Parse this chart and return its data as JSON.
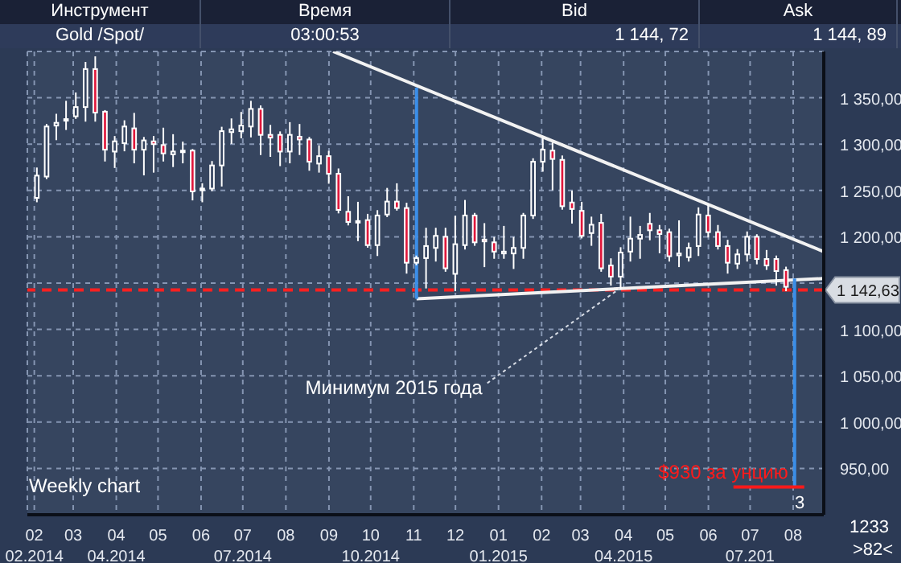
{
  "chart_data": [
    {
      "type": "other",
      "annotations": [
        "Инструмент",
        "Время",
        "Bid",
        "Ask",
        "Gold /Spot/",
        "03:00:53",
        "1 144, 72",
        "1 144, 89"
      ]
    },
    {
      "type": "candlestick",
      "x": [
        "2014-02-03",
        "2014-02-10",
        "2014-02-17",
        "2014-02-24",
        "2014-03-03",
        "2014-03-10",
        "2014-03-17",
        "2014-03-24",
        "2014-03-31",
        "2014-04-07",
        "2014-04-14",
        "2014-04-21",
        "2014-04-28",
        "2014-05-05",
        "2014-05-12",
        "2014-05-19",
        "2014-05-26",
        "2014-06-02",
        "2014-06-09",
        "2014-06-16",
        "2014-06-23",
        "2014-06-30",
        "2014-07-07",
        "2014-07-14",
        "2014-07-21",
        "2014-07-28",
        "2014-08-04",
        "2014-08-11",
        "2014-08-18",
        "2014-08-25",
        "2014-09-01",
        "2014-09-08",
        "2014-09-15",
        "2014-09-22",
        "2014-09-29",
        "2014-10-06",
        "2014-10-13",
        "2014-10-20",
        "2014-10-27",
        "2014-11-03",
        "2014-11-10",
        "2014-11-17",
        "2014-11-24",
        "2014-12-01",
        "2014-12-08",
        "2014-12-15",
        "2014-12-22",
        "2014-12-29",
        "2015-01-05",
        "2015-01-12",
        "2015-01-19",
        "2015-01-26",
        "2015-02-02",
        "2015-02-09",
        "2015-02-16",
        "2015-02-23",
        "2015-03-02",
        "2015-03-09",
        "2015-03-16",
        "2015-03-23",
        "2015-03-30",
        "2015-04-06",
        "2015-04-13",
        "2015-04-20",
        "2015-04-27",
        "2015-05-04",
        "2015-05-11",
        "2015-05-18",
        "2015-05-25",
        "2015-06-01",
        "2015-06-08",
        "2015-06-15",
        "2015-06-22",
        "2015-06-29",
        "2015-07-06",
        "2015-07-13",
        "2015-07-20",
        "2015-07-27"
      ],
      "ohlc": [
        [
          1242,
          1273,
          1239,
          1266
        ],
        [
          1265,
          1320,
          1264,
          1319
        ],
        [
          1320,
          1331,
          1306,
          1323
        ],
        [
          1326,
          1345,
          1317,
          1327
        ],
        [
          1330,
          1354,
          1329,
          1340
        ],
        [
          1340,
          1387,
          1326,
          1381
        ],
        [
          1381,
          1393,
          1326,
          1334
        ],
        [
          1335,
          1335,
          1283,
          1294
        ],
        [
          1292,
          1307,
          1276,
          1303
        ],
        [
          1301,
          1324,
          1294,
          1319
        ],
        [
          1317,
          1332,
          1281,
          1294
        ],
        [
          1294,
          1306,
          1268,
          1304
        ],
        [
          1303,
          1307,
          1271,
          1300
        ],
        [
          1299,
          1316,
          1283,
          1290
        ],
        [
          1289,
          1309,
          1277,
          1292
        ],
        [
          1293,
          1301,
          1281,
          1293
        ],
        [
          1293,
          1293,
          1241,
          1249
        ],
        [
          1251,
          1256,
          1239,
          1252
        ],
        [
          1252,
          1280,
          1251,
          1277
        ],
        [
          1277,
          1317,
          1256,
          1314
        ],
        [
          1313,
          1326,
          1302,
          1316
        ],
        [
          1314,
          1333,
          1308,
          1320
        ],
        [
          1319,
          1345,
          1309,
          1338
        ],
        [
          1338,
          1340,
          1290,
          1310
        ],
        [
          1310,
          1319,
          1288,
          1307
        ],
        [
          1310,
          1312,
          1278,
          1292
        ],
        [
          1292,
          1322,
          1281,
          1310
        ],
        [
          1308,
          1320,
          1290,
          1305
        ],
        [
          1305,
          1306,
          1273,
          1281
        ],
        [
          1279,
          1297,
          1271,
          1287
        ],
        [
          1287,
          1291,
          1259,
          1268
        ],
        [
          1268,
          1272,
          1227,
          1229
        ],
        [
          1227,
          1242,
          1214,
          1216
        ],
        [
          1216,
          1236,
          1197,
          1217
        ],
        [
          1218,
          1223,
          1190,
          1191
        ],
        [
          1191,
          1227,
          1181,
          1223
        ],
        [
          1224,
          1251,
          1223,
          1238
        ],
        [
          1238,
          1256,
          1230,
          1231
        ],
        [
          1231,
          1235,
          1162,
          1172
        ],
        [
          1172,
          1178,
          1171,
          1177
        ],
        [
          1177,
          1208,
          1146,
          1190
        ],
        [
          1188,
          1208,
          1175,
          1201
        ],
        [
          1200,
          1208,
          1164,
          1166
        ],
        [
          1160,
          1221,
          1143,
          1192
        ],
        [
          1191,
          1238,
          1188,
          1223
        ],
        [
          1223,
          1224,
          1192,
          1194
        ],
        [
          1197,
          1213,
          1169,
          1195
        ],
        [
          1194,
          1198,
          1178,
          1184
        ],
        [
          1182,
          1210,
          1178,
          1184
        ],
        [
          1182,
          1198,
          1167,
          1188
        ],
        [
          1188,
          1224,
          1178,
          1223
        ],
        [
          1223,
          1283,
          1221,
          1281
        ],
        [
          1281,
          1305,
          1272,
          1294
        ],
        [
          1293,
          1300,
          1252,
          1284
        ],
        [
          1283,
          1286,
          1231,
          1233
        ],
        [
          1237,
          1248,
          1216,
          1230
        ],
        [
          1228,
          1236,
          1200,
          1201
        ],
        [
          1204,
          1220,
          1192,
          1213
        ],
        [
          1215,
          1223,
          1164,
          1166
        ],
        [
          1169,
          1175,
          1149,
          1157
        ],
        [
          1157,
          1187,
          1145,
          1183
        ],
        [
          1184,
          1220,
          1175,
          1198
        ],
        [
          1198,
          1210,
          1178,
          1202
        ],
        [
          1214,
          1224,
          1198,
          1207
        ],
        [
          1207,
          1211,
          1184,
          1203
        ],
        [
          1205,
          1207,
          1175,
          1179
        ],
        [
          1180,
          1216,
          1169,
          1182
        ],
        [
          1178,
          1192,
          1175,
          1188
        ],
        [
          1190,
          1230,
          1181,
          1224
        ],
        [
          1223,
          1233,
          1201,
          1205
        ],
        [
          1205,
          1211,
          1188,
          1190
        ],
        [
          1190,
          1195,
          1162,
          1172
        ],
        [
          1171,
          1185,
          1167,
          1181
        ],
        [
          1181,
          1204,
          1175,
          1200
        ],
        [
          1200,
          1201,
          1172,
          1176
        ],
        [
          1176,
          1184,
          1166,
          1169
        ],
        [
          1176,
          1178,
          1149,
          1163
        ],
        [
          1164,
          1166,
          1143,
          1146
        ]
      ],
      "series": [
        {
          "type": "line",
          "color": "#f2f2f2",
          "x": [
            "2014-09-04",
            "2015-08-23"
          ],
          "values": [
            1400,
            1184
          ]
        },
        {
          "type": "line",
          "color": "#f2f2f2",
          "x": [
            "2014-11-03",
            "2015-08-23"
          ],
          "values": [
            1133,
            1155
          ]
        },
        {
          "type": "line",
          "color": "#3b8ee8",
          "x": [
            "2014-11-03",
            "2014-11-03"
          ],
          "values": [
            1361,
            1133
          ]
        },
        {
          "type": "line",
          "color": "#3b8ee8",
          "x": [
            "2015-08-02",
            "2015-08-02"
          ],
          "values": [
            1155,
            930
          ]
        }
      ],
      "ref_lines": [
        {
          "axis": "y",
          "value": 1142.63,
          "label": "1 142,63",
          "color": "#ff2020",
          "line_style": "dashed"
        }
      ],
      "xlim": [
        "2014-01-27",
        "2015-08-23"
      ],
      "xticks": [
        {
          "value": "2014-02-01",
          "label": "02\n02.2014"
        },
        {
          "value": "2014-03-01",
          "label": "03"
        },
        {
          "value": "2014-04-01",
          "label": "04\n04.2014"
        },
        {
          "value": "2014-05-01",
          "label": "05"
        },
        {
          "value": "2014-06-01",
          "label": "06"
        },
        {
          "value": "2014-07-01",
          "label": "07\n07.2014"
        },
        {
          "value": "2014-08-01",
          "label": "08"
        },
        {
          "value": "2014-09-01",
          "label": "09"
        },
        {
          "value": "2014-10-01",
          "label": "10\n10.2014"
        },
        {
          "value": "2014-11-01",
          "label": "11"
        },
        {
          "value": "2014-12-01",
          "label": "12"
        },
        {
          "value": "2015-01-01",
          "label": "01\n01.2015"
        },
        {
          "value": "2015-02-01",
          "label": "02"
        },
        {
          "value": "2015-03-01",
          "label": "03"
        },
        {
          "value": "2015-04-01",
          "label": "04\n04.2015"
        },
        {
          "value": "2015-05-01",
          "label": "05"
        },
        {
          "value": "2015-06-01",
          "label": "06"
        },
        {
          "value": "2015-07-01",
          "label": "07\n07.201"
        },
        {
          "value": "2015-08-01",
          "label": "08"
        }
      ],
      "ylim": [
        900,
        1400
      ],
      "yticks": [
        {
          "value": 950,
          "label": "950,00"
        },
        {
          "value": 1000,
          "label": "1 000,00"
        },
        {
          "value": 1050,
          "label": "1 050,00"
        },
        {
          "value": 1100,
          "label": "1 100,00"
        },
        {
          "value": 1150,
          "label": null
        },
        {
          "value": 1200,
          "label": "1 200,00"
        },
        {
          "value": 1250,
          "label": "1 250,00"
        },
        {
          "value": 1300,
          "label": "1 300,00"
        },
        {
          "value": 1350,
          "label": "1 350,00"
        }
      ],
      "grid": true,
      "annotations": [
        {
          "text": "Минимум 2015 года",
          "x": "2015-03-30",
          "y": 1145
        },
        {
          "text": "$930 за унцию",
          "x": "2015-08-02",
          "y": 930
        },
        "Weekly chart",
        "3",
        "1233",
        ">82<"
      ]
    }
  ]
}
